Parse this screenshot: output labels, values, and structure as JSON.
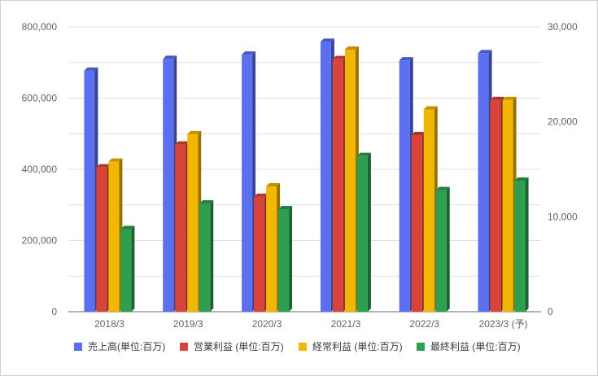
{
  "chart_data": {
    "type": "bar",
    "title": "",
    "categories": [
      "2018/3",
      "2019/3",
      "2020/3",
      "2021/3",
      "2022/3",
      "2023/3 (予)"
    ],
    "left_axis": {
      "ylim": [
        0,
        800000
      ],
      "ticks": [
        0,
        200000,
        400000,
        600000,
        800000
      ],
      "tick_labels": [
        "0",
        "200,000",
        "400,000",
        "600,000",
        "800,000"
      ]
    },
    "right_axis": {
      "ylim": [
        0,
        30000
      ],
      "ticks": [
        0,
        10000,
        20000,
        30000
      ],
      "tick_labels": [
        "0",
        "10,000",
        "20,000",
        "30,000"
      ]
    },
    "grid": true,
    "legend_position": "bottom",
    "series": [
      {
        "name": "売上高(単位:百万)",
        "axis": "left",
        "color": "#5b6ff0",
        "values": [
          677000,
          710000,
          722000,
          758000,
          706000,
          726000
        ]
      },
      {
        "name": "営業利益 (単位:百万)",
        "axis": "right",
        "color": "#d9443a",
        "values": [
          15200,
          17600,
          12100,
          26600,
          18600,
          22300
        ]
      },
      {
        "name": "経常利益 (単位:百万)",
        "axis": "right",
        "color": "#f2b705",
        "values": [
          15800,
          18700,
          13200,
          27600,
          21300,
          22300
        ]
      },
      {
        "name": "最終利益 (単位:百万)",
        "axis": "right",
        "color": "#2e9e4f",
        "values": [
          8700,
          11400,
          10800,
          16400,
          12800,
          13800
        ]
      }
    ]
  }
}
